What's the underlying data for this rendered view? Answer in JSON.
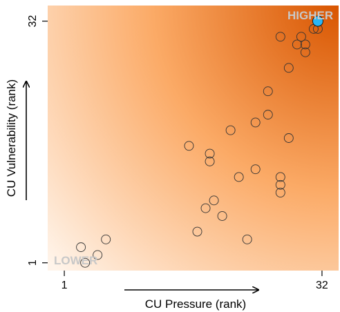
{
  "chart_data": {
    "type": "scatter",
    "title": "",
    "xlabel": "CU Pressure (rank)",
    "ylabel": "CU Vulnerability (rank)",
    "xlim": [
      -1,
      34
    ],
    "ylim": [
      0,
      34
    ],
    "xticks": [
      1,
      32
    ],
    "yticks": [
      1,
      32
    ],
    "grid": false,
    "background": "orange gradient, light at lower-left to dark at upper-right",
    "corner_labels": {
      "low": "LOWER",
      "high": "HIGHER"
    },
    "colors": {
      "gradient_low": "#fff4ea",
      "gradient_mid": "#fbaa66",
      "gradient_high": "#d85500",
      "highlight": "#29b6f6",
      "marker_edge": "#333333",
      "corner_label": "#c8c8c8"
    },
    "points": [
      {
        "x": 3,
        "y": 3
      },
      {
        "x": 3.5,
        "y": 1
      },
      {
        "x": 5,
        "y": 2
      },
      {
        "x": 6,
        "y": 4
      },
      {
        "x": 16,
        "y": 16
      },
      {
        "x": 17,
        "y": 5
      },
      {
        "x": 18,
        "y": 8
      },
      {
        "x": 18.5,
        "y": 15
      },
      {
        "x": 18.5,
        "y": 14
      },
      {
        "x": 19,
        "y": 9
      },
      {
        "x": 20,
        "y": 7
      },
      {
        "x": 21,
        "y": 18
      },
      {
        "x": 22,
        "y": 12
      },
      {
        "x": 23,
        "y": 4
      },
      {
        "x": 24,
        "y": 13
      },
      {
        "x": 24,
        "y": 19
      },
      {
        "x": 25.5,
        "y": 20
      },
      {
        "x": 25.5,
        "y": 23
      },
      {
        "x": 27,
        "y": 12
      },
      {
        "x": 27,
        "y": 11
      },
      {
        "x": 27,
        "y": 10
      },
      {
        "x": 27,
        "y": 30
      },
      {
        "x": 28,
        "y": 26
      },
      {
        "x": 28,
        "y": 17
      },
      {
        "x": 29,
        "y": 29
      },
      {
        "x": 29.5,
        "y": 30
      },
      {
        "x": 30,
        "y": 28
      },
      {
        "x": 30,
        "y": 29
      },
      {
        "x": 31,
        "y": 31
      },
      {
        "x": 31.5,
        "y": 31
      }
    ],
    "highlight_point": {
      "x": 31.5,
      "y": 32
    }
  }
}
